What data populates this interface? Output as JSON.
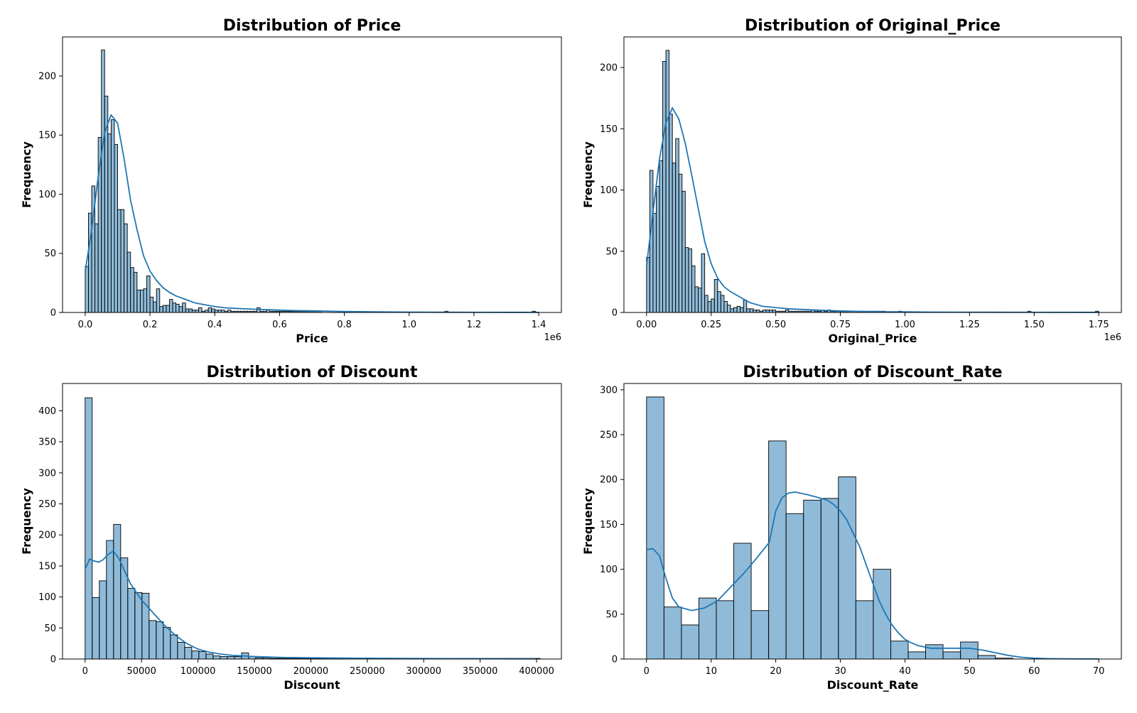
{
  "chart_data": [
    {
      "type": "histogram",
      "title": "Distribution of Price",
      "xlabel": "Price",
      "ylabel": "Frequency",
      "x_offset_label": "1e6",
      "xlim": [
        -0.07,
        1.47
      ],
      "ylim": [
        0,
        233
      ],
      "x_ticks": [
        0.0,
        0.2,
        0.4,
        0.6,
        0.8,
        1.0,
        1.2,
        1.4
      ],
      "x_tick_labels": [
        "0.0",
        "0.2",
        "0.4",
        "0.6",
        "0.8",
        "1.0",
        "1.2",
        "1.4"
      ],
      "y_ticks": [
        0,
        50,
        100,
        150,
        200
      ],
      "y_tick_labels": [
        "0",
        "50",
        "100",
        "150",
        "200"
      ],
      "bin_start": 0.0,
      "bin_width": 0.01,
      "counts": [
        39,
        84,
        107,
        75,
        148,
        222,
        183,
        151,
        163,
        142,
        87,
        87,
        75,
        51,
        38,
        34,
        19,
        19,
        20,
        31,
        13,
        9,
        20,
        5,
        6,
        6,
        11,
        8,
        7,
        5,
        8,
        3,
        3,
        2,
        2,
        4,
        1,
        2,
        4,
        3,
        2,
        2,
        2,
        1,
        2,
        1,
        1,
        1,
        1,
        1,
        1,
        1,
        1,
        4,
        1,
        1,
        2,
        1,
        1,
        1,
        1,
        1,
        1,
        1,
        1,
        1,
        1,
        1,
        1,
        1,
        1,
        1,
        1,
        0,
        0,
        0,
        0,
        0,
        0,
        0,
        0,
        0,
        0,
        0,
        0,
        0,
        0,
        0,
        0,
        0,
        0,
        0,
        0,
        0,
        0,
        0,
        0,
        0,
        0,
        0,
        0,
        0,
        0,
        0,
        0,
        0,
        0,
        0,
        0,
        0,
        0,
        1,
        0,
        0,
        0,
        0,
        0,
        0,
        0,
        0,
        0,
        0,
        0,
        0,
        0,
        0,
        0,
        0,
        0,
        0,
        0,
        0,
        0,
        0,
        0,
        0,
        0,
        0,
        1
      ],
      "kde": {
        "x": [
          0.0,
          0.02,
          0.04,
          0.06,
          0.08,
          0.1,
          0.12,
          0.14,
          0.16,
          0.18,
          0.2,
          0.22,
          0.24,
          0.26,
          0.28,
          0.3,
          0.32,
          0.34,
          0.36,
          0.38,
          0.4,
          0.43,
          0.46,
          0.5,
          0.55,
          0.6,
          0.65,
          0.7,
          0.75,
          0.8,
          0.9,
          1.0,
          1.1,
          1.2,
          1.3,
          1.4
        ],
        "y": [
          35,
          70,
          115,
          152,
          167,
          160,
          130,
          95,
          70,
          48,
          35,
          27,
          21,
          17,
          14,
          12,
          10,
          8,
          7,
          6,
          5,
          4,
          3.5,
          3,
          2.5,
          2,
          1.6,
          1.4,
          1.1,
          0.8,
          0.5,
          0.3,
          0.2,
          0.15,
          0.1,
          0.1
        ]
      }
    },
    {
      "type": "histogram",
      "title": "Distribution of Original_Price",
      "xlabel": "Original_Price",
      "ylabel": "Frequency",
      "x_offset_label": "1e6",
      "xlim": [
        -0.0875,
        1.8375
      ],
      "ylim": [
        0,
        225
      ],
      "x_ticks": [
        0.0,
        0.25,
        0.5,
        0.75,
        1.0,
        1.25,
        1.5,
        1.75
      ],
      "x_tick_labels": [
        "0.00",
        "0.25",
        "0.50",
        "0.75",
        "1.00",
        "1.25",
        "1.50",
        "1.75"
      ],
      "y_ticks": [
        0,
        50,
        100,
        150,
        200
      ],
      "y_tick_labels": [
        "0",
        "50",
        "100",
        "150",
        "200"
      ],
      "bin_start": 0.0,
      "bin_width": 0.0125,
      "counts": [
        45,
        116,
        81,
        103,
        124,
        205,
        214,
        162,
        122,
        142,
        113,
        99,
        53,
        52,
        38,
        21,
        20,
        48,
        14,
        9,
        11,
        27,
        17,
        14,
        9,
        6,
        3,
        4,
        5,
        4,
        10,
        3,
        3,
        2,
        2,
        1,
        2,
        2,
        2,
        2,
        1,
        1,
        1,
        2,
        1,
        1,
        1,
        1,
        1,
        1,
        1,
        2,
        1,
        1,
        2,
        1,
        2,
        1,
        1,
        1,
        1,
        1,
        1,
        1,
        1,
        1,
        1,
        1,
        1,
        1,
        1,
        1,
        1,
        1,
        0,
        0,
        0,
        0,
        1,
        0,
        0,
        0,
        0,
        0,
        0,
        0,
        0,
        0,
        0,
        0,
        0,
        0,
        0,
        0,
        0,
        0,
        0,
        0,
        0,
        0,
        0,
        0,
        0,
        0,
        0,
        0,
        0,
        0,
        0,
        0,
        0,
        0,
        0,
        0,
        0,
        0,
        0,
        0,
        1,
        0,
        0,
        0,
        0,
        0,
        0,
        0,
        0,
        0,
        0,
        0,
        0,
        0,
        0,
        0,
        0,
        0,
        0,
        0,
        0,
        1
      ],
      "kde": {
        "x": [
          0.0,
          0.025,
          0.05,
          0.075,
          0.1,
          0.125,
          0.15,
          0.175,
          0.2,
          0.225,
          0.25,
          0.275,
          0.3,
          0.325,
          0.35,
          0.375,
          0.4,
          0.45,
          0.5,
          0.55,
          0.6,
          0.7,
          0.8,
          0.9,
          1.0,
          1.1,
          1.25,
          1.5,
          1.75
        ],
        "y": [
          38,
          82,
          125,
          155,
          167,
          158,
          138,
          112,
          85,
          58,
          40,
          28,
          21,
          17,
          14,
          11,
          8,
          5,
          4,
          3,
          2.5,
          1.6,
          1.0,
          0.6,
          0.5,
          0.3,
          0.2,
          0.15,
          0.1
        ]
      }
    },
    {
      "type": "histogram",
      "title": "Distribution of Discount",
      "xlabel": "Discount",
      "ylabel": "Frequency",
      "xlim": [
        -20000,
        422000
      ],
      "ylim": [
        0,
        444
      ],
      "x_ticks": [
        0,
        50000,
        100000,
        150000,
        200000,
        250000,
        300000,
        350000,
        400000
      ],
      "x_tick_labels": [
        "0",
        "50000",
        "100000",
        "150000",
        "200000",
        "250000",
        "300000",
        "350000",
        "400000"
      ],
      "y_ticks": [
        0,
        50,
        100,
        150,
        200,
        250,
        300,
        350,
        400
      ],
      "y_tick_labels": [
        "0",
        "50",
        "100",
        "150",
        "200",
        "250",
        "300",
        "350",
        "400"
      ],
      "bin_start": 0,
      "bin_width": 6300,
      "counts": [
        421,
        99,
        126,
        191,
        217,
        163,
        114,
        107,
        106,
        62,
        60,
        51,
        39,
        27,
        19,
        13,
        12,
        8,
        5,
        4,
        4,
        4,
        10,
        4,
        2,
        2,
        1,
        1,
        1,
        1,
        1,
        1,
        1,
        1,
        1,
        1,
        1,
        1,
        1,
        1,
        1,
        1,
        1,
        1,
        1,
        1,
        1,
        1,
        1,
        1,
        1,
        1,
        1,
        1,
        1,
        1,
        1,
        1,
        1,
        1,
        1,
        1,
        1,
        1
      ],
      "kde": {
        "x": [
          0,
          4000,
          8000,
          12000,
          16000,
          20000,
          25000,
          30000,
          35000,
          40000,
          50000,
          60000,
          70000,
          80000,
          90000,
          100000,
          110000,
          120000,
          130000,
          140000,
          150000,
          175000,
          200000,
          250000,
          300000,
          350000,
          400000
        ],
        "y": [
          145,
          161,
          158,
          156,
          160,
          168,
          174,
          162,
          142,
          122,
          95,
          75,
          55,
          38,
          25,
          16,
          11,
          8,
          6,
          5,
          4,
          2.5,
          2,
          1.2,
          0.8,
          0.5,
          0.3
        ]
      }
    },
    {
      "type": "histogram",
      "title": "Distribution of Discount_Rate",
      "xlabel": "Discount_Rate",
      "ylabel": "Frequency",
      "xlim": [
        -3.5,
        73.5
      ],
      "ylim": [
        0,
        307
      ],
      "x_ticks": [
        0,
        10,
        20,
        30,
        40,
        50,
        60,
        70
      ],
      "x_tick_labels": [
        "0",
        "10",
        "20",
        "30",
        "40",
        "50",
        "60",
        "70"
      ],
      "y_ticks": [
        0,
        50,
        100,
        150,
        200,
        250,
        300
      ],
      "y_tick_labels": [
        "0",
        "50",
        "100",
        "150",
        "200",
        "250",
        "300"
      ],
      "bin_start": 0,
      "bin_width": 2.7,
      "counts": [
        292,
        58,
        38,
        68,
        65,
        129,
        54,
        243,
        162,
        177,
        179,
        203,
        65,
        100,
        20,
        8,
        16,
        8,
        19,
        4,
        1,
        0,
        0,
        0,
        0,
        0
      ],
      "kde": {
        "x": [
          0,
          1,
          2,
          3,
          4,
          5,
          7,
          9,
          11,
          13,
          15,
          17,
          19,
          20,
          21,
          22,
          23,
          25,
          27,
          28,
          29,
          30,
          31,
          32,
          33,
          34,
          35,
          36,
          37,
          38,
          39,
          40,
          41,
          42,
          44,
          46,
          48,
          50,
          52,
          54,
          56,
          58,
          60,
          62,
          64,
          66,
          68,
          70
        ],
        "y": [
          122,
          123,
          115,
          90,
          68,
          58,
          54,
          57,
          65,
          80,
          95,
          112,
          130,
          165,
          180,
          185,
          186,
          183,
          179,
          177,
          172,
          165,
          155,
          140,
          125,
          105,
          85,
          65,
          50,
          38,
          29,
          22,
          18,
          15,
          12,
          12,
          12,
          12,
          10,
          7,
          4,
          2,
          1,
          0.5,
          0.3,
          0.2,
          0.1,
          0.1
        ]
      }
    }
  ]
}
